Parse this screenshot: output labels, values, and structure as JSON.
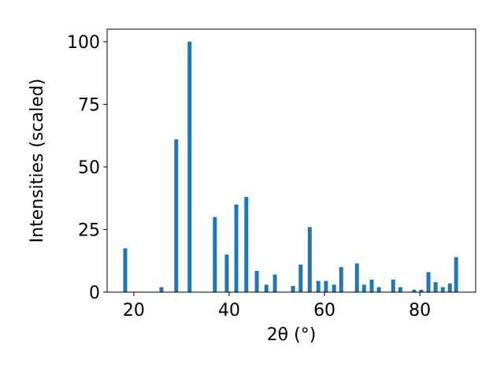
{
  "chart_data": {
    "type": "bar",
    "xlabel": "2θ (°)",
    "ylabel": "Intensities (scaled)",
    "x": [
      18.2,
      25.8,
      28.9,
      31.7,
      37.0,
      39.5,
      41.5,
      43.6,
      45.8,
      47.8,
      49.6,
      53.4,
      55.0,
      56.9,
      58.7,
      60.3,
      62.0,
      63.5,
      66.8,
      68.3,
      69.9,
      71.4,
      74.4,
      75.9,
      78.8,
      80.3,
      81.8,
      83.3,
      84.8,
      86.3,
      87.6
    ],
    "values": [
      17.5,
      2,
      61,
      100,
      30,
      15,
      35,
      38,
      8.5,
      3,
      7,
      2.5,
      11,
      26,
      4.5,
      4.5,
      3,
      10,
      11.5,
      3,
      5,
      2,
      5,
      2,
      1,
      1,
      8,
      4,
      2,
      3.5,
      14
    ],
    "color": "#1f77b4",
    "xlim": [
      14.4,
      91.7
    ],
    "xticks": [
      20,
      40,
      60,
      80
    ],
    "ylim": [
      0,
      105
    ],
    "yticks": [
      0,
      25,
      50,
      75,
      100
    ]
  }
}
